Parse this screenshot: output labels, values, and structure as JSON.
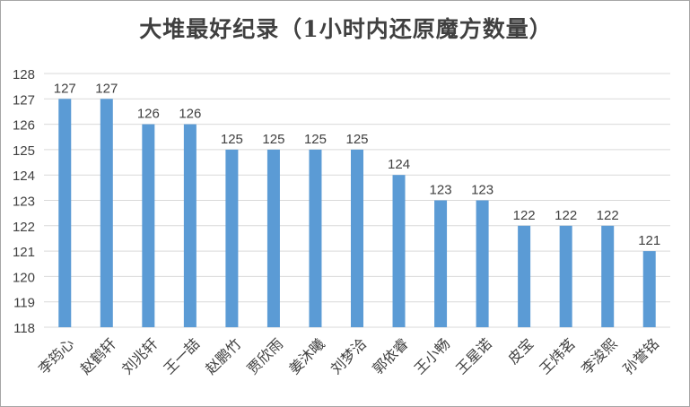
{
  "chart_data": {
    "type": "bar",
    "title": "大堆最好纪录（1小时内还原魔方数量）",
    "xlabel": "",
    "ylabel": "",
    "categories": [
      "李筠心",
      "赵鹤轩",
      "刘兆轩",
      "王一喆",
      "赵鹏竹",
      "贾欣雨",
      "姜沐曦",
      "刘梦洽",
      "郭依睿",
      "王小畅",
      "王星诺",
      "皮宝",
      "王炜茗",
      "李浚熙",
      "孙誉铭"
    ],
    "values": [
      127,
      127,
      126,
      126,
      125,
      125,
      125,
      125,
      124,
      123,
      123,
      122,
      122,
      122,
      121
    ],
    "ylim": [
      118,
      128
    ],
    "yticks": [
      118,
      119,
      120,
      121,
      122,
      123,
      124,
      125,
      126,
      127,
      128
    ],
    "grid": true,
    "legend": "none",
    "bar_color": "#5b9bd5",
    "grid_color": "#d9d9d9",
    "text_color": "#404040",
    "data_labels": true
  }
}
